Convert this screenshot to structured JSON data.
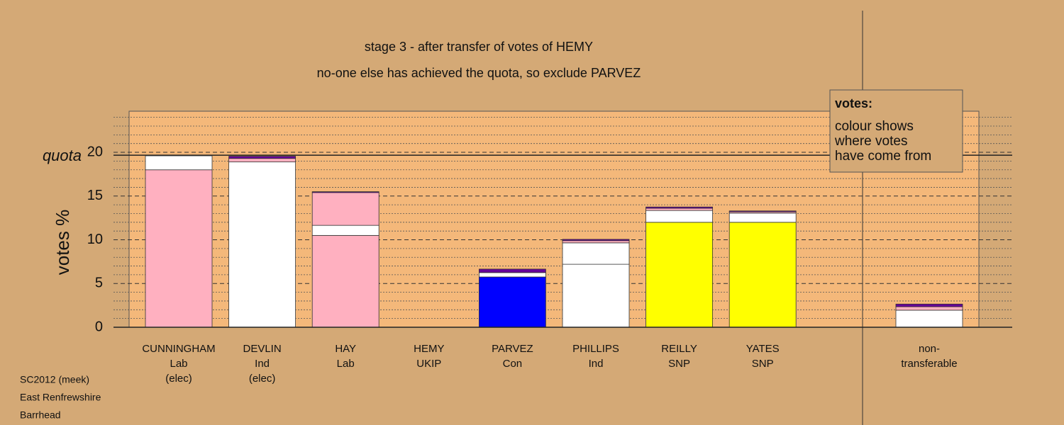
{
  "chart_data": {
    "type": "stacked-bar",
    "title": "stage 3 - after transfer of votes of HEMY",
    "subtitle": "no-one else has achieved the quota, so exclude PARVEZ",
    "y_label": "votes %",
    "ylim": [
      0,
      24.7
    ],
    "yticks": [
      0,
      5,
      10,
      15,
      20
    ],
    "yminorticks": [
      1,
      2,
      3,
      4,
      6,
      7,
      8,
      9,
      11,
      12,
      13,
      14,
      16,
      17,
      18,
      19,
      21,
      22,
      23,
      24
    ],
    "quota": 19.67,
    "quota_label": "quota",
    "legend": {
      "title": "votes:",
      "lines": [
        "colour shows",
        "where votes",
        "have come from"
      ]
    },
    "bars": [
      {
        "labels": [
          "CUNNINGHAM",
          "Lab",
          "(elec)"
        ],
        "segments": [
          {
            "value": 18.0,
            "color": "#ffb0c0"
          },
          {
            "value": 1.6,
            "color": "#ffffff"
          }
        ]
      },
      {
        "labels": [
          "DEVLIN",
          "Ind",
          "(elec)"
        ],
        "segments": [
          {
            "value": 18.9,
            "color": "#ffffff"
          },
          {
            "value": 0.4,
            "color": "#ffb0c0"
          },
          {
            "value": 0.25,
            "color": "#660099"
          }
        ]
      },
      {
        "labels": [
          "HAY",
          "Lab"
        ],
        "segments": [
          {
            "value": 10.5,
            "color": "#ffb0c0"
          },
          {
            "value": 1.15,
            "color": "#ffffff"
          },
          {
            "value": 3.75,
            "color": "#ffb0c0"
          },
          {
            "value": 0.1,
            "color": "#660099"
          }
        ]
      },
      {
        "labels": [
          "HEMY",
          "UKIP"
        ],
        "segments": [
          {
            "value": 0,
            "color": "#ffb0c0"
          }
        ]
      },
      {
        "labels": [
          "PARVEZ",
          "Con"
        ],
        "segments": [
          {
            "value": 5.75,
            "color": "#0000ff"
          },
          {
            "value": 0.5,
            "color": "#ffffff"
          },
          {
            "value": 0.4,
            "color": "#660099"
          }
        ]
      },
      {
        "labels": [
          "PHILLIPS",
          "Ind"
        ],
        "segments": [
          {
            "value": 7.2,
            "color": "#ffffff"
          },
          {
            "value": 2.45,
            "color": "#ffffff"
          },
          {
            "value": 0.25,
            "color": "#ffb0c0"
          },
          {
            "value": 0.15,
            "color": "#660099"
          }
        ]
      },
      {
        "labels": [
          "REILLY",
          "SNP"
        ],
        "segments": [
          {
            "value": 12.0,
            "color": "#ffff00"
          },
          {
            "value": 1.35,
            "color": "#ffffff"
          },
          {
            "value": 0.25,
            "color": "#ffb0c0"
          },
          {
            "value": 0.15,
            "color": "#660099"
          }
        ]
      },
      {
        "labels": [
          "YATES",
          "SNP"
        ],
        "segments": [
          {
            "value": 12.0,
            "color": "#ffff00"
          },
          {
            "value": 1.05,
            "color": "#ffffff"
          },
          {
            "value": 0.15,
            "color": "#ffb0c0"
          },
          {
            "value": 0.1,
            "color": "#660099"
          }
        ]
      },
      {
        "labels": [
          "non-",
          "transferable"
        ],
        "segments": [
          {
            "value": 1.95,
            "color": "#ffffff"
          },
          {
            "value": 0.4,
            "color": "#ffb0c0"
          },
          {
            "value": 0.3,
            "color": "#660099"
          }
        ]
      }
    ],
    "footer": [
      "SC2012 (meek)",
      "East Renfrewshire",
      "Barrhead"
    ]
  }
}
